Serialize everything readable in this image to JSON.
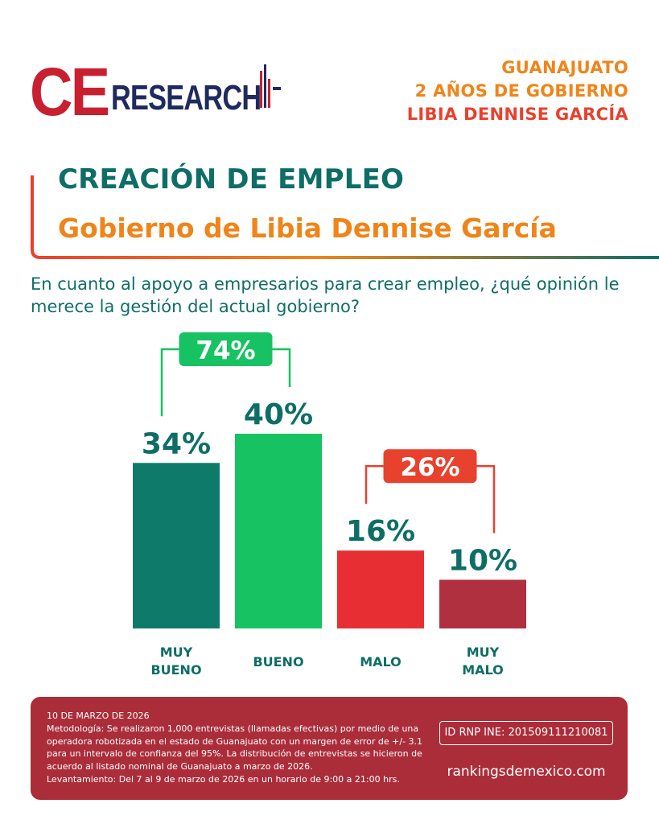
{
  "logo": {
    "ce": "CE",
    "research": "RESEARCH"
  },
  "header": {
    "line1": "GUANAJUATO",
    "line2": "2 AÑOS DE GOBIERNO",
    "line3": "LIBIA DENNISE GARCÍA"
  },
  "title": "CREACIÓN DE EMPLEO",
  "subtitle": "Gobierno de Libia Dennise García",
  "question": "En cuanto al apoyo a empresarios para crear empleo, ¿qué opinión le merece la gestión del actual gobierno?",
  "colors": {
    "muy_bueno": "#0e7a6a",
    "bueno": "#17c262",
    "malo": "#e62e33",
    "muy_malo": "#b03040",
    "teal_text": "#0e6e66",
    "orange": "#f08419",
    "footer_bg": "#ab2d3a"
  },
  "chart_data": {
    "type": "bar",
    "categories": [
      [
        "MUY",
        "BUENO"
      ],
      [
        "BUENO"
      ],
      [
        "MALO"
      ],
      [
        "MUY",
        "MALO"
      ]
    ],
    "values": [
      34,
      40,
      16,
      10
    ],
    "value_labels": [
      "34%",
      "40%",
      "16%",
      "10%"
    ],
    "bar_colors": [
      "#0e7a6a",
      "#17c262",
      "#e62e33",
      "#b03040"
    ],
    "groups": [
      {
        "label": "74%",
        "from": 0,
        "to": 1,
        "color": "#17c262"
      },
      {
        "label": "26%",
        "from": 2,
        "to": 3,
        "color": "#e8412e"
      }
    ],
    "title": "",
    "xlabel": "",
    "ylabel": "",
    "grid": false
  },
  "footer": {
    "date": "10 DE MARZO DE 2026",
    "methodology": "Metodología: Se realizaron 1,000 entrevistas (llamadas efectivas) por medio de una operadora robotizada en el estado de Guanajuato con un margen de error de +/- 3.1 para un intervalo de confianza del 95%. La distribución de entrevistas se hicieron de acuerdo al listado nominal de Guanajuato a marzo de 2026.",
    "fieldwork": "Levantamiento: Del 7 al 9 de marzo de 2026 en un horario de 9:00 a 21:00 hrs.",
    "rnp": "ID RNP INE: 201509111210081",
    "website": "rankingsdemexico.com"
  }
}
